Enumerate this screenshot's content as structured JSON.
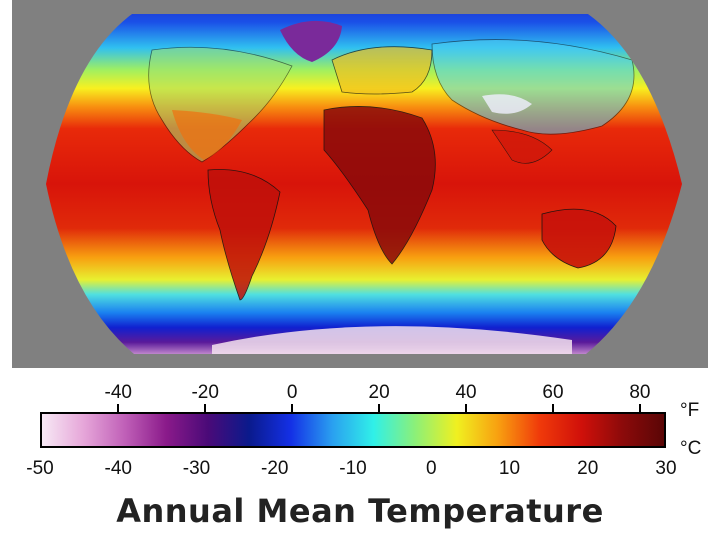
{
  "title": "Annual Mean Temperature",
  "colors": {
    "background": "#808080",
    "ramp": [
      "#f7e9f5",
      "#e6a6d9",
      "#c060b8",
      "#8a1a8a",
      "#4a0a78",
      "#0a1a8c",
      "#1430e6",
      "#2aa0f0",
      "#30f0e8",
      "#8cf078",
      "#f0f020",
      "#f8a010",
      "#f03a0a",
      "#d0100a",
      "#8c0a0a",
      "#5a0606"
    ]
  },
  "legend": {
    "fahrenheit_unit": "°F",
    "celsius_unit": "°C",
    "fahrenheit_ticks": [
      "-40",
      "-20",
      "0",
      "20",
      "40",
      "60",
      "80"
    ],
    "celsius_ticks": [
      "-50",
      "-40",
      "-30",
      "-20",
      "-10",
      "0",
      "10",
      "20",
      "30"
    ]
  }
}
